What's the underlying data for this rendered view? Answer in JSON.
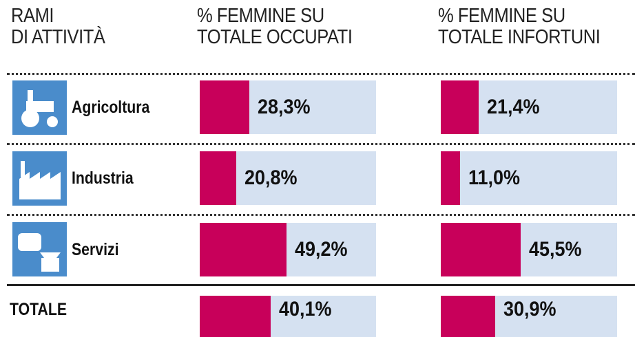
{
  "chart_data": {
    "type": "bar",
    "orientation": "horizontal",
    "row_header": [
      "RAMI",
      "DI ATTIVITÀ"
    ],
    "categories": [
      "Agricoltura",
      "Industria",
      "Servizi",
      "TOTALE"
    ],
    "series": [
      {
        "header": [
          "% FEMMINE SU",
          "TOTALE OCCUPATI"
        ],
        "color": "#c8005a",
        "values": [
          28.3,
          20.8,
          49.2,
          40.1
        ],
        "value_labels": [
          "28,3%",
          "20,8%",
          "49,2%",
          "40,1%"
        ]
      },
      {
        "header": [
          "% FEMMINE SU",
          "TOTALE INFORTUNI"
        ],
        "color": "#c8005a",
        "values": [
          21.4,
          11.0,
          45.5,
          30.9
        ],
        "value_labels": [
          "21,4%",
          "11,0%",
          "45,5%",
          "30,9%"
        ]
      }
    ],
    "xlim": [
      0,
      100
    ],
    "track_color": "#d5e1f1"
  }
}
